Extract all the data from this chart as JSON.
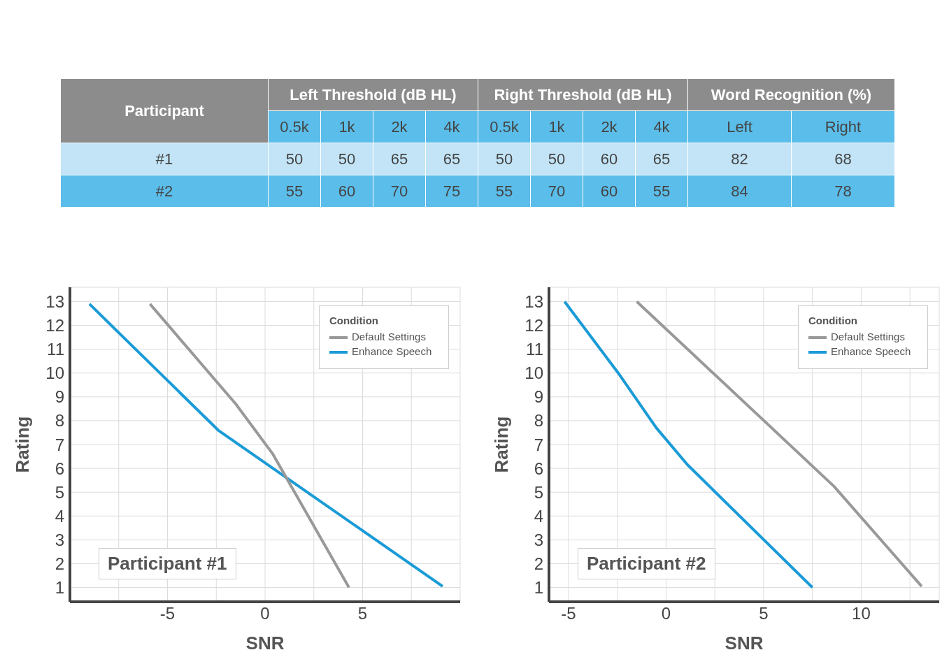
{
  "chart_data": [
    {
      "type": "other",
      "ylabel": "Participant",
      "annotations": [
        "Left Threshold (dB HL)",
        "Right Threshold (dB HL)",
        "Word Recognition (%)"
      ],
      "categories": [
        "0.5k",
        "1k",
        "2k",
        "4k",
        "0.5k",
        "1k",
        "2k",
        "4k",
        "Left",
        "Right"
      ],
      "y_categories": [
        "#1",
        "#2"
      ],
      "cell_labels": [
        [
          "50",
          "50",
          "65",
          "65",
          "50",
          "50",
          "60",
          "65",
          "82",
          "68"
        ],
        [
          "55",
          "60",
          "70",
          "75",
          "55",
          "70",
          "60",
          "55",
          "84",
          "78"
        ]
      ]
    },
    {
      "type": "line",
      "xlabel": "SNR",
      "ylabel": "Rating",
      "legend_title": "Condition",
      "legend": "top right",
      "grid": true,
      "marker": "none",
      "annotations": [
        "Participant #1"
      ],
      "xlim": [
        -10,
        10
      ],
      "xticks": [
        {
          "value": -7.5,
          "label": null
        },
        -5,
        {
          "value": -2.5,
          "label": null
        },
        0,
        {
          "value": 2.5,
          "label": null
        },
        5,
        {
          "value": 7.5,
          "label": null
        }
      ],
      "ylim": [
        0.4,
        13.6
      ],
      "yticks": [
        1,
        2,
        3,
        4,
        5,
        6,
        7,
        8,
        9,
        10,
        11,
        12,
        13
      ],
      "series": [
        {
          "name": "Enhance Speech",
          "color": "#1a9bd7",
          "x": [
            -9,
            -2.4,
            9.1
          ],
          "values": [
            12.9,
            7.6,
            1.05
          ]
        },
        {
          "name": "Default Settings",
          "color": "#999999",
          "x": [
            -5.9,
            -1.5,
            0.4,
            4.3
          ],
          "values": [
            12.9,
            8.7,
            6.6,
            1
          ]
        }
      ]
    },
    {
      "type": "line",
      "xlabel": "SNR",
      "ylabel": "Rating",
      "legend_title": "Condition",
      "legend": "top right",
      "grid": true,
      "marker": "none",
      "annotations": [
        "Participant #2"
      ],
      "xlim": [
        -6,
        14
      ],
      "xticks": [
        -5,
        {
          "value": -2.5,
          "label": null
        },
        0,
        {
          "value": 2.5,
          "label": null
        },
        5,
        {
          "value": 7.5,
          "label": null
        },
        10,
        {
          "value": 12.5,
          "label": null
        }
      ],
      "ylim": [
        0.4,
        13.6
      ],
      "yticks": [
        1,
        2,
        3,
        4,
        5,
        6,
        7,
        8,
        9,
        10,
        11,
        12,
        13
      ],
      "series": [
        {
          "name": "Enhance Speech",
          "color": "#1a9bd7",
          "x": [
            -5.2,
            -2.45,
            -0.5,
            1.1,
            7.5
          ],
          "values": [
            13,
            10,
            7.7,
            6.15,
            1
          ]
        },
        {
          "name": "Default Settings",
          "color": "#999999",
          "x": [
            -1.5,
            8.6,
            13.1
          ],
          "values": [
            13,
            5.25,
            1.05
          ]
        }
      ]
    }
  ]
}
